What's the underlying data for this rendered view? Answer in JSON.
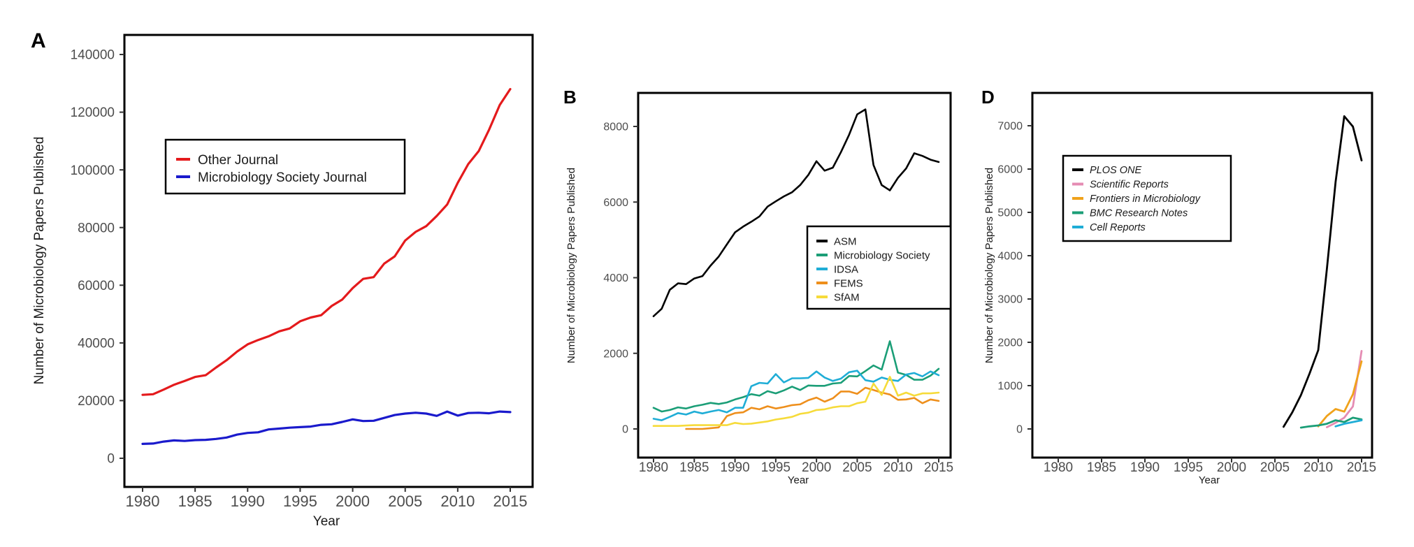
{
  "figure": {
    "panels": [
      "A",
      "B",
      "D"
    ]
  },
  "chart_data": [
    {
      "panel": "A",
      "type": "line",
      "title": "",
      "xlabel": "Year",
      "ylabel": "Number of Microbiology Papers Published",
      "xlim": [
        1980,
        2015
      ],
      "ylim": [
        0,
        140000
      ],
      "xticks": [
        1980,
        1985,
        1990,
        1995,
        2000,
        2005,
        2010,
        2015
      ],
      "yticks": [
        0,
        20000,
        40000,
        60000,
        80000,
        100000,
        120000,
        140000
      ],
      "grid": false,
      "legend_position": "upper-left",
      "x": [
        1980,
        1981,
        1982,
        1983,
        1984,
        1985,
        1986,
        1987,
        1988,
        1989,
        1990,
        1991,
        1992,
        1993,
        1994,
        1995,
        1996,
        1997,
        1998,
        1999,
        2000,
        2001,
        2002,
        2003,
        2004,
        2005,
        2006,
        2007,
        2008,
        2009,
        2010,
        2011,
        2012,
        2013,
        2014,
        2015
      ],
      "series": [
        {
          "name": "Other Journal",
          "color": "#e41a1c",
          "values": [
            22000,
            22200,
            23800,
            25500,
            26800,
            28200,
            28800,
            31500,
            34000,
            37000,
            39500,
            41000,
            42300,
            44000,
            45000,
            47500,
            48800,
            49600,
            52800,
            55000,
            59000,
            62200,
            62800,
            67500,
            70000,
            75500,
            78500,
            80500,
            84000,
            88000,
            95500,
            102000,
            106500,
            114000,
            122500,
            128000
          ]
        },
        {
          "name": "Microbiology Society Journal",
          "color": "#1a1acc",
          "values": [
            5000,
            5100,
            5800,
            6200,
            6000,
            6300,
            6400,
            6700,
            7200,
            8200,
            8800,
            9000,
            10000,
            10300,
            10600,
            10800,
            11000,
            11600,
            11800,
            12600,
            13500,
            12900,
            13000,
            14000,
            15000,
            15500,
            15800,
            15500,
            14700,
            16200,
            14800,
            15700,
            15800,
            15600,
            16200,
            16000
          ]
        }
      ]
    },
    {
      "panel": "B",
      "type": "line",
      "title": "",
      "xlabel": "Year",
      "ylabel": "Number of Microbiology Papers Published",
      "xlim": [
        1980,
        2015
      ],
      "ylim": [
        0,
        8000
      ],
      "xticks": [
        1980,
        1985,
        1990,
        1995,
        2000,
        2005,
        2010,
        2015
      ],
      "yticks": [
        0,
        2000,
        4000,
        6000,
        8000
      ],
      "grid": false,
      "legend_position": "center-right",
      "x": [
        1980,
        1981,
        1982,
        1983,
        1984,
        1985,
        1986,
        1987,
        1988,
        1989,
        1990,
        1991,
        1992,
        1993,
        1994,
        1995,
        1996,
        1997,
        1998,
        1999,
        2000,
        2001,
        2002,
        2003,
        2004,
        2005,
        2006,
        2007,
        2008,
        2009,
        2010,
        2011,
        2012,
        2013,
        2014,
        2015
      ],
      "series": [
        {
          "name": "ASM",
          "color": "#000000",
          "values": [
            2980,
            3180,
            3680,
            3850,
            3830,
            3980,
            4040,
            4320,
            4560,
            4880,
            5200,
            5350,
            5480,
            5620,
            5880,
            6020,
            6150,
            6260,
            6450,
            6720,
            7080,
            6830,
            6910,
            7320,
            7780,
            8320,
            8450,
            6980,
            6450,
            6310,
            6640,
            6890,
            7290,
            7220,
            7120,
            7060
          ]
        },
        {
          "name": "Microbiology Society",
          "color": "#1b9e77",
          "values": [
            560,
            460,
            500,
            570,
            540,
            600,
            640,
            690,
            660,
            700,
            780,
            840,
            920,
            880,
            1000,
            940,
            1020,
            1120,
            1030,
            1150,
            1140,
            1140,
            1200,
            1220,
            1400,
            1390,
            1530,
            1680,
            1570,
            2320,
            1490,
            1430,
            1300,
            1300,
            1410,
            1590
          ]
        },
        {
          "name": "IDSA",
          "color": "#1fadd6",
          "values": [
            270,
            230,
            320,
            420,
            380,
            460,
            410,
            460,
            500,
            440,
            560,
            560,
            1130,
            1220,
            1200,
            1450,
            1230,
            1340,
            1340,
            1350,
            1520,
            1360,
            1270,
            1330,
            1500,
            1540,
            1290,
            1250,
            1360,
            1300,
            1270,
            1440,
            1480,
            1390,
            1520,
            1420
          ]
        },
        {
          "name": "FEMS",
          "color": "#ee8f1c",
          "values": [
            null,
            null,
            null,
            null,
            0,
            0,
            0,
            20,
            40,
            340,
            420,
            440,
            560,
            520,
            600,
            540,
            580,
            630,
            650,
            760,
            830,
            720,
            810,
            990,
            990,
            930,
            1090,
            1030,
            960,
            910,
            770,
            780,
            820,
            680,
            780,
            740
          ]
        },
        {
          "name": "SfAM",
          "color": "#f6db3a",
          "values": [
            80,
            80,
            80,
            80,
            90,
            100,
            100,
            100,
            100,
            100,
            160,
            130,
            140,
            170,
            200,
            250,
            280,
            320,
            400,
            430,
            500,
            520,
            570,
            600,
            600,
            680,
            720,
            1200,
            900,
            1380,
            880,
            960,
            880,
            940,
            940,
            960
          ]
        }
      ]
    },
    {
      "panel": "D",
      "type": "line",
      "title": "",
      "xlabel": "Year",
      "ylabel": "Number of Microbiology Papers Published",
      "xlim": [
        1980,
        2015
      ],
      "ylim": [
        0,
        7000
      ],
      "xticks": [
        1980,
        1985,
        1990,
        1995,
        2000,
        2005,
        2010,
        2015
      ],
      "yticks": [
        0,
        1000,
        2000,
        3000,
        4000,
        5000,
        6000,
        7000
      ],
      "grid": false,
      "legend_position": "upper-left",
      "legend_italic": true,
      "series": [
        {
          "name": "PLOS ONE",
          "color": "#000000",
          "x": [
            2006,
            2007,
            2008,
            2009,
            2010,
            2011,
            2012,
            2013,
            2014,
            2015
          ],
          "values": [
            50,
            380,
            780,
            1280,
            1820,
            3700,
            5700,
            7220,
            6980,
            6200
          ]
        },
        {
          "name": "Scientific Reports",
          "color": "#e58cb3",
          "x": [
            2011,
            2012,
            2013,
            2014,
            2015
          ],
          "values": [
            40,
            140,
            260,
            520,
            1800
          ]
        },
        {
          "name": "Frontiers in Microbiology",
          "color": "#f0a21b",
          "x": [
            2010,
            2011,
            2012,
            2013,
            2014,
            2015
          ],
          "values": [
            60,
            300,
            460,
            400,
            800,
            1560
          ]
        },
        {
          "name": "BMC Research Notes",
          "color": "#1b9e77",
          "x": [
            2008,
            2009,
            2010,
            2011,
            2012,
            2013,
            2014,
            2015
          ],
          "values": [
            30,
            60,
            80,
            120,
            200,
            160,
            260,
            220
          ]
        },
        {
          "name": "Cell Reports",
          "color": "#1fadd6",
          "x": [
            2012,
            2013,
            2014,
            2015
          ],
          "values": [
            60,
            120,
            160,
            200
          ]
        }
      ]
    }
  ]
}
